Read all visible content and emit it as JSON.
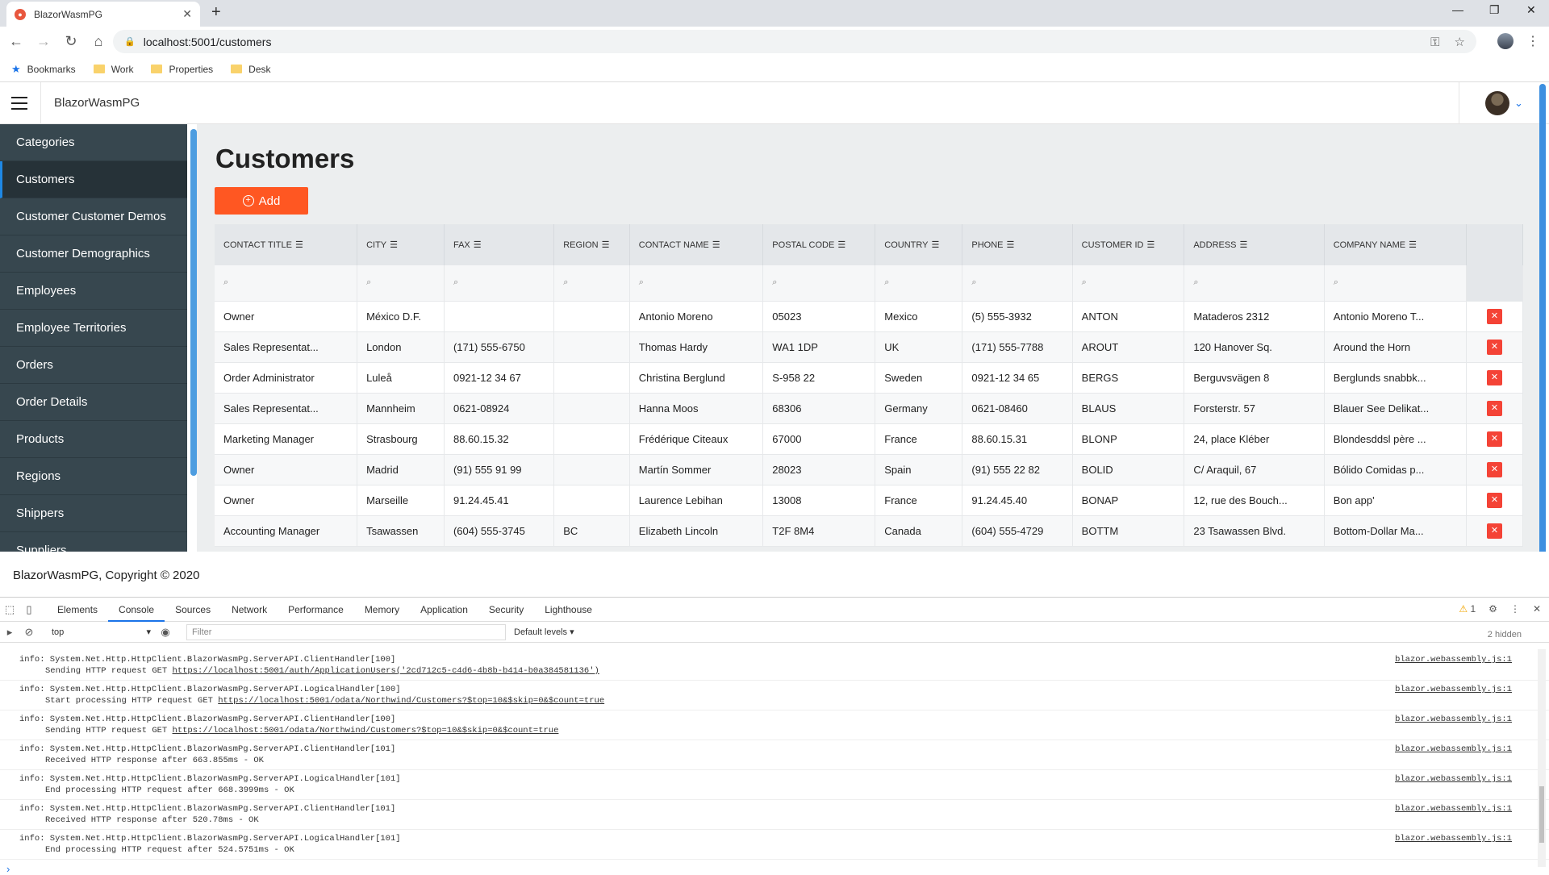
{
  "browser": {
    "tab_title": "BlazorWasmPG",
    "url": "localhost:5001/customers",
    "bookmarks": [
      "Bookmarks",
      "Work",
      "Properties",
      "Desk"
    ]
  },
  "app": {
    "brand": "BlazorWasmPG",
    "page_title": "Customers",
    "add_label": "Add",
    "footer": "BlazorWasmPG, Copyright © 2020"
  },
  "sidebar": {
    "items": [
      {
        "label": "Categories"
      },
      {
        "label": "Customers"
      },
      {
        "label": "Customer Customer Demos"
      },
      {
        "label": "Customer Demographics"
      },
      {
        "label": "Employees"
      },
      {
        "label": "Employee Territories"
      },
      {
        "label": "Orders"
      },
      {
        "label": "Order Details"
      },
      {
        "label": "Products"
      },
      {
        "label": "Regions"
      },
      {
        "label": "Shippers"
      },
      {
        "label": "Suppliers"
      }
    ]
  },
  "grid": {
    "columns": [
      "CONTACT TITLE",
      "CITY",
      "FAX",
      "REGION",
      "CONTACT NAME",
      "POSTAL CODE",
      "COUNTRY",
      "PHONE",
      "CUSTOMER ID",
      "ADDRESS",
      "COMPANY NAME"
    ],
    "rows": [
      [
        "Owner",
        "México D.F.",
        "",
        "",
        "Antonio Moreno",
        "05023",
        "Mexico",
        "(5) 555-3932",
        "ANTON",
        "Mataderos 2312",
        "Antonio Moreno T..."
      ],
      [
        "Sales Representat...",
        "London",
        "(171) 555-6750",
        "",
        "Thomas Hardy",
        "WA1 1DP",
        "UK",
        "(171) 555-7788",
        "AROUT",
        "120 Hanover Sq.",
        "Around the Horn"
      ],
      [
        "Order Administrator",
        "Luleå",
        "0921-12 34 67",
        "",
        "Christina Berglund",
        "S-958 22",
        "Sweden",
        "0921-12 34 65",
        "BERGS",
        "Berguvsvägen 8",
        "Berglunds snabbk..."
      ],
      [
        "Sales Representat...",
        "Mannheim",
        "0621-08924",
        "",
        "Hanna Moos",
        "68306",
        "Germany",
        "0621-08460",
        "BLAUS",
        "Forsterstr. 57",
        "Blauer See Delikat..."
      ],
      [
        "Marketing Manager",
        "Strasbourg",
        "88.60.15.32",
        "",
        "Frédérique Citeaux",
        "67000",
        "France",
        "88.60.15.31",
        "BLONP",
        "24, place Kléber",
        "Blondesddsl père ..."
      ],
      [
        "Owner",
        "Madrid",
        "(91) 555 91 99",
        "",
        "Martín Sommer",
        "28023",
        "Spain",
        "(91) 555 22 82",
        "BOLID",
        "C/ Araquil, 67",
        "Bólido Comidas p..."
      ],
      [
        "Owner",
        "Marseille",
        "91.24.45.41",
        "",
        "Laurence Lebihan",
        "13008",
        "France",
        "91.24.45.40",
        "BONAP",
        "12, rue des Bouch...",
        "Bon app'"
      ],
      [
        "Accounting Manager",
        "Tsawassen",
        "(604) 555-3745",
        "BC",
        "Elizabeth Lincoln",
        "T2F 8M4",
        "Canada",
        "(604) 555-4729",
        "BOTTM",
        "23 Tsawassen Blvd.",
        "Bottom-Dollar Ma..."
      ]
    ]
  },
  "devtools": {
    "tabs": [
      "Elements",
      "Console",
      "Sources",
      "Network",
      "Performance",
      "Memory",
      "Application",
      "Security",
      "Lighthouse"
    ],
    "active_tab": "Console",
    "warnings": "1",
    "context": "top",
    "filter_placeholder": "Filter",
    "levels": "Default levels",
    "hidden": "2 hidden",
    "logs": [
      {
        "l1": "info: System.Net.Http.HttpClient.BlazorWasmPg.ServerAPI.ClientHandler[100]",
        "l2": "Sending HTTP request GET ",
        "url": "https://localhost:5001/auth/ApplicationUsers('2cd712c5-c4d6-4b8b-b414-b0a384581136')",
        "src": "blazor.webassembly.js:1"
      },
      {
        "l1": "info: System.Net.Http.HttpClient.BlazorWasmPg.ServerAPI.LogicalHandler[100]",
        "l2": "Start processing HTTP request GET ",
        "url": "https://localhost:5001/odata/Northwind/Customers?$top=10&$skip=0&$count=true",
        "src": "blazor.webassembly.js:1"
      },
      {
        "l1": "info: System.Net.Http.HttpClient.BlazorWasmPg.ServerAPI.ClientHandler[100]",
        "l2": "Sending HTTP request GET ",
        "url": "https://localhost:5001/odata/Northwind/Customers?$top=10&$skip=0&$count=true",
        "src": "blazor.webassembly.js:1"
      },
      {
        "l1": "info: System.Net.Http.HttpClient.BlazorWasmPg.ServerAPI.ClientHandler[101]",
        "l2": "Received HTTP response after 663.855ms - OK",
        "url": "",
        "src": "blazor.webassembly.js:1"
      },
      {
        "l1": "info: System.Net.Http.HttpClient.BlazorWasmPg.ServerAPI.LogicalHandler[101]",
        "l2": "End processing HTTP request after 668.3999ms - OK",
        "url": "",
        "src": "blazor.webassembly.js:1"
      },
      {
        "l1": "info: System.Net.Http.HttpClient.BlazorWasmPg.ServerAPI.ClientHandler[101]",
        "l2": "Received HTTP response after 520.78ms - OK",
        "url": "",
        "src": "blazor.webassembly.js:1"
      },
      {
        "l1": "info: System.Net.Http.HttpClient.BlazorWasmPg.ServerAPI.LogicalHandler[101]",
        "l2": "End processing HTTP request after 524.5751ms - OK",
        "url": "",
        "src": "blazor.webassembly.js:1"
      }
    ]
  }
}
